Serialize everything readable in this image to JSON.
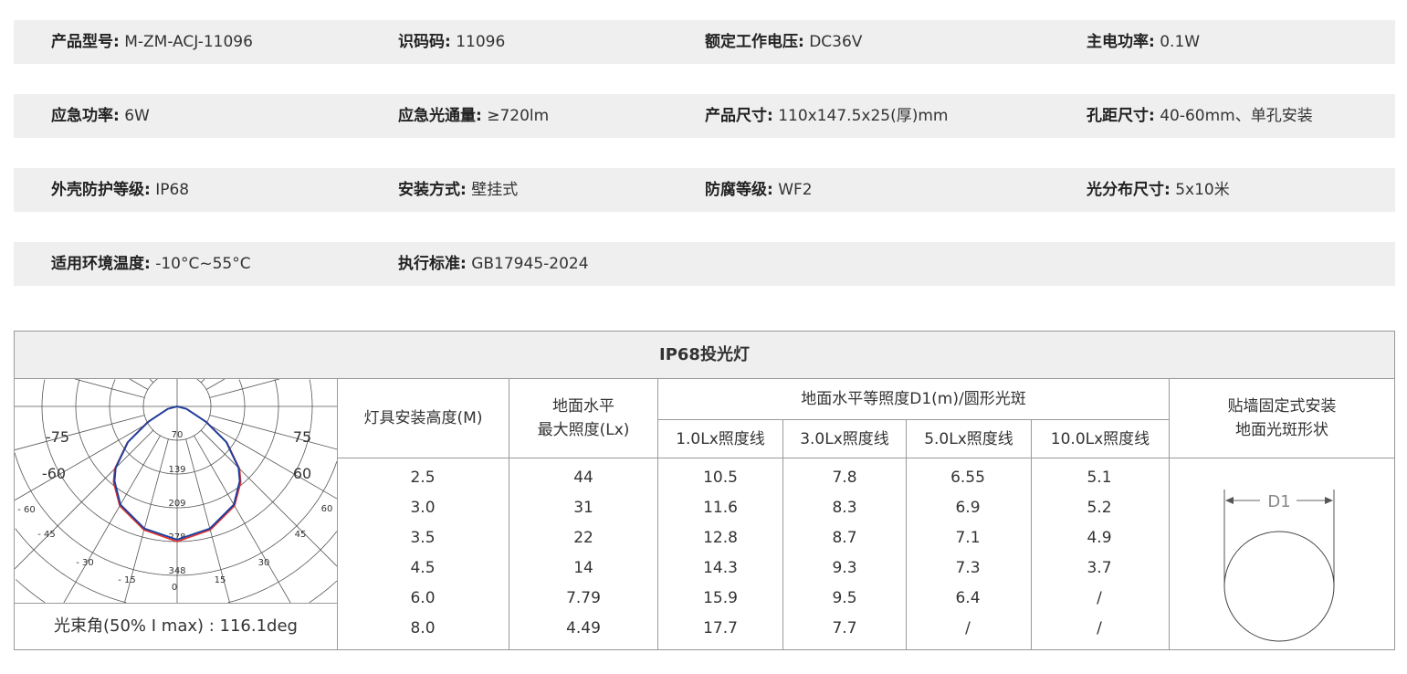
{
  "specs": [
    [
      {
        "label": "产品型号:",
        "value": "M-ZM-ACJ-11096"
      },
      {
        "label": "识码码:",
        "value": "11096"
      },
      {
        "label": "额定工作电压:",
        "value": "DC36V"
      },
      {
        "label": "主电功率:",
        "value": "0.1W"
      }
    ],
    [
      {
        "label": "应急功率:",
        "value": "6W"
      },
      {
        "label": "应急光通量:",
        "value": "≥720lm"
      },
      {
        "label": "产品尺寸:",
        "value": "110x147.5x25(厚)mm"
      },
      {
        "label": "孔距尺寸:",
        "value": "40-60mm、单孔安装"
      }
    ],
    [
      {
        "label": "外壳防护等级:",
        "value": "IP68"
      },
      {
        "label": "安装方式:",
        "value": "壁挂式"
      },
      {
        "label": "防腐等级:",
        "value": "WF2"
      },
      {
        "label": "光分布尺寸:",
        "value": "5x10米"
      }
    ],
    [
      {
        "label": "适用环境温度:",
        "value": "-10°C~55°C"
      },
      {
        "label": "执行标准:",
        "value": "GB17945-2024"
      }
    ]
  ],
  "table": {
    "title": "IP68投光灯",
    "headers": {
      "height": "灯具安装高度(M)",
      "max_lux_1": "地面水平",
      "max_lux_2": "最大照度(Lx)",
      "group": "地面水平等照度D1(m)/圆形光斑",
      "sub": [
        "1.0Lx照度线",
        "3.0Lx照度线",
        "5.0Lx照度线",
        "10.0Lx照度线"
      ],
      "shape_1": "贴墙固定式安装",
      "shape_2": "地面光斑形状"
    },
    "rows": [
      [
        "2.5",
        "44",
        "10.5",
        "7.8",
        "6.55",
        "5.1"
      ],
      [
        "3.0",
        "31",
        "11.6",
        "8.3",
        "6.9",
        "5.2"
      ],
      [
        "3.5",
        "22",
        "12.8",
        "8.7",
        "7.1",
        "4.9"
      ],
      [
        "4.5",
        "14",
        "14.3",
        "9.3",
        "7.3",
        "3.7"
      ],
      [
        "6.0",
        "7.79",
        "15.9",
        "9.5",
        "6.4",
        "/"
      ],
      [
        "8.0",
        "4.49",
        "17.7",
        "7.7",
        "/",
        "/"
      ]
    ],
    "beam_angle": "光束角(50% I max) : 116.1deg",
    "spot_label": "D1"
  },
  "chart_data": {
    "type": "polar",
    "ring_labels": [
      "70",
      "139",
      "209",
      "278",
      "348"
    ],
    "angle_labels_large": [
      "-75",
      "75",
      "-60",
      "60"
    ],
    "angle_labels_small": [
      "- 60",
      "60",
      "- 45",
      "45",
      "- 30",
      "30",
      "- 15",
      "15",
      "0"
    ],
    "angles_deg": [
      0,
      15,
      30,
      40,
      45,
      54,
      62,
      75,
      90
    ],
    "series": [
      {
        "color": "#1f3f9c",
        "values": [
          276,
          262,
          235,
          202,
          180,
          126,
          68,
          20,
          0
        ]
      },
      {
        "color": "#e8322a",
        "values": [
          280,
          265,
          238,
          205,
          183,
          128,
          70,
          21,
          0
        ]
      }
    ]
  }
}
